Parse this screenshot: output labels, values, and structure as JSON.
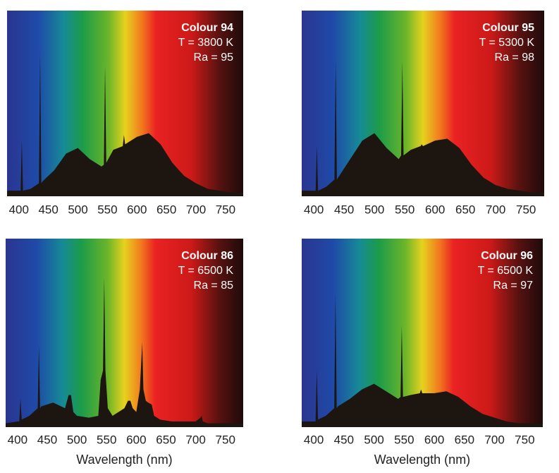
{
  "chart_data": [
    {
      "type": "area",
      "title": "Colour 94",
      "annotations": [
        "T = 3800 K",
        "Ra = 95"
      ],
      "color": "#1c1510",
      "x": [
        380,
        400,
        403,
        405,
        407,
        420,
        434,
        436,
        438,
        440,
        460,
        480,
        500,
        520,
        540,
        544,
        546,
        548,
        560,
        576,
        578,
        580,
        600,
        620,
        640,
        660,
        680,
        700,
        720,
        740,
        760,
        780
      ],
      "values": [
        3,
        3,
        3,
        30,
        3,
        4,
        7,
        77,
        7,
        8,
        14,
        23,
        26,
        20,
        16,
        17,
        70,
        18,
        25,
        27,
        33,
        28,
        32,
        34,
        28,
        18,
        11,
        7,
        4,
        3,
        2,
        2
      ],
      "xlim": [
        380,
        780
      ],
      "ylim": [
        0,
        100
      ],
      "xticks": [
        400,
        450,
        500,
        550,
        600,
        650,
        700,
        750
      ]
    },
    {
      "type": "area",
      "title": "Colour 95",
      "annotations": [
        "T = 5300 K",
        "Ra = 98"
      ],
      "color": "#1c1510",
      "x": [
        380,
        400,
        403,
        405,
        407,
        420,
        434,
        436,
        438,
        440,
        460,
        480,
        500,
        520,
        540,
        544,
        546,
        548,
        560,
        576,
        578,
        580,
        600,
        620,
        640,
        660,
        680,
        700,
        720,
        740,
        760,
        780
      ],
      "values": [
        3,
        3,
        3,
        27,
        3,
        5,
        9,
        73,
        9,
        10,
        20,
        30,
        34,
        26,
        20,
        22,
        73,
        22,
        25,
        27,
        28,
        27,
        30,
        31,
        26,
        17,
        10,
        6,
        4,
        3,
        2,
        2
      ],
      "xlim": [
        380,
        780
      ],
      "ylim": [
        0,
        100
      ],
      "xticks": [
        400,
        450,
        500,
        550,
        600,
        650,
        700,
        750
      ]
    },
    {
      "type": "area",
      "title": "Colour 86",
      "annotations": [
        "T = 6500 K",
        "Ra = 85"
      ],
      "color": "#1c1510",
      "x": [
        380,
        400,
        403,
        405,
        407,
        420,
        434,
        436,
        438,
        440,
        460,
        480,
        486,
        490,
        494,
        500,
        520,
        536,
        540,
        544,
        546,
        548,
        552,
        560,
        580,
        586,
        590,
        594,
        600,
        606,
        610,
        612,
        616,
        620,
        626,
        630,
        640,
        660,
        680,
        700,
        708,
        710,
        712,
        720,
        740,
        760,
        780
      ],
      "values": [
        2,
        3,
        3,
        15,
        4,
        6,
        10,
        43,
        10,
        11,
        13,
        10,
        17,
        17,
        8,
        6,
        5,
        6,
        25,
        30,
        79,
        30,
        10,
        6,
        10,
        14,
        14,
        10,
        8,
        20,
        45,
        20,
        14,
        13,
        12,
        6,
        4,
        3,
        3,
        3,
        5,
        6,
        3,
        2,
        2,
        2,
        2
      ],
      "xlim": [
        380,
        780
      ],
      "ylim": [
        0,
        100
      ],
      "xticks": [
        400,
        450,
        500,
        550,
        600,
        650,
        700,
        750
      ],
      "xlabel": "Wavelength (nm)"
    },
    {
      "type": "area",
      "title": "Colour 96",
      "annotations": [
        "T = 6500 K",
        "Ra = 97"
      ],
      "color": "#1c1510",
      "x": [
        380,
        400,
        403,
        405,
        407,
        420,
        434,
        436,
        438,
        440,
        460,
        480,
        500,
        520,
        540,
        544,
        546,
        548,
        560,
        576,
        578,
        580,
        600,
        620,
        640,
        660,
        680,
        700,
        720,
        740,
        760,
        780
      ],
      "values": [
        3,
        3,
        3,
        30,
        4,
        6,
        10,
        71,
        10,
        11,
        15,
        20,
        23,
        19,
        15,
        16,
        54,
        16,
        17,
        18,
        20,
        18,
        18,
        19,
        16,
        11,
        7,
        5,
        3,
        2,
        2,
        2
      ],
      "xlim": [
        380,
        780
      ],
      "ylim": [
        0,
        100
      ],
      "xticks": [
        400,
        450,
        500,
        550,
        600,
        650,
        700,
        750
      ],
      "xlabel": "Wavelength (nm)"
    }
  ]
}
